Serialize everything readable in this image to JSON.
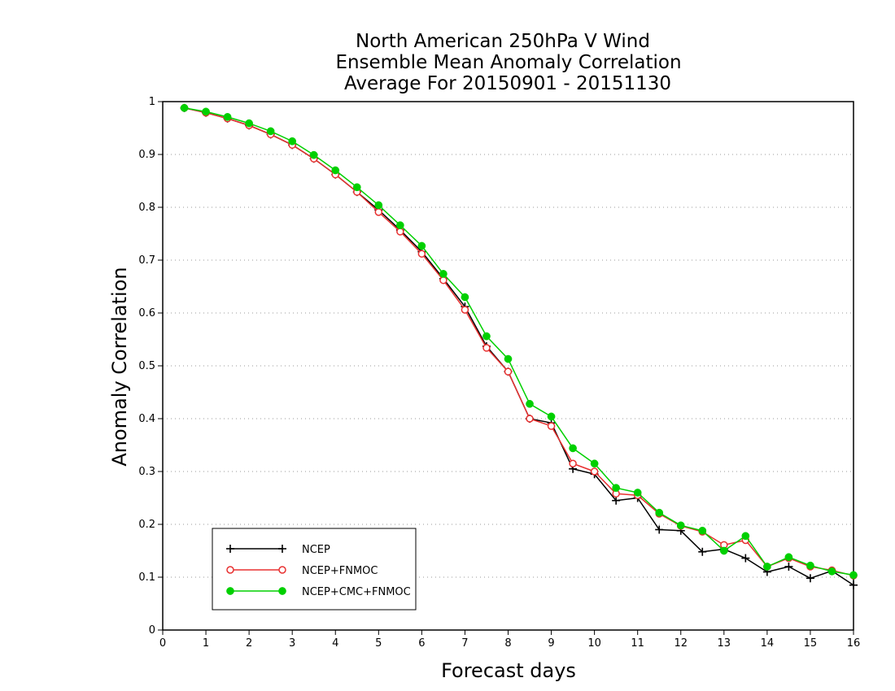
{
  "chart_data": {
    "type": "line",
    "title": [
      "North American 250hPa V Wind",
      "Ensemble Mean Anomaly Correlation",
      "Average For 20150901 - 20151130"
    ],
    "xlabel": "Forecast days",
    "ylabel": "Anomaly Correlation",
    "xlim": [
      0,
      16
    ],
    "ylim": [
      0,
      1
    ],
    "xticks": [
      "0",
      "1",
      "2",
      "3",
      "4",
      "5",
      "6",
      "7",
      "8",
      "9",
      "10",
      "11",
      "12",
      "13",
      "14",
      "15",
      "16"
    ],
    "yticks": [
      "0",
      "0.1",
      "0.2",
      "0.3",
      "0.4",
      "0.5",
      "0.6",
      "0.7",
      "0.8",
      "0.9",
      "1"
    ],
    "grid": true,
    "legend_position": "bottom-left",
    "x": [
      0.5,
      1,
      1.5,
      2,
      2.5,
      3,
      3.5,
      4,
      4.5,
      5,
      5.5,
      6,
      6.5,
      7,
      7.5,
      8,
      8.5,
      9,
      9.5,
      10,
      10.5,
      11,
      11.5,
      12,
      12.5,
      13,
      13.5,
      14,
      14.5,
      15,
      15.5,
      16
    ],
    "series": [
      {
        "name": "NCEP",
        "color": "#000000",
        "marker": "plus",
        "values": [
          0.988,
          0.979,
          0.968,
          0.955,
          0.938,
          0.918,
          0.892,
          0.862,
          0.829,
          0.795,
          0.757,
          0.716,
          0.665,
          0.612,
          0.537,
          0.489,
          0.4,
          0.392,
          0.305,
          0.295,
          0.245,
          0.25,
          0.19,
          0.188,
          0.148,
          0.153,
          0.136,
          0.11,
          0.12,
          0.098,
          0.112,
          0.085
        ]
      },
      {
        "name": "NCEP+FNMOC",
        "color": "#e83030",
        "marker": "open-circle",
        "values": [
          0.988,
          0.979,
          0.968,
          0.955,
          0.938,
          0.918,
          0.892,
          0.862,
          0.829,
          0.791,
          0.754,
          0.712,
          0.662,
          0.606,
          0.534,
          0.489,
          0.4,
          0.386,
          0.315,
          0.3,
          0.258,
          0.255,
          0.22,
          0.197,
          0.186,
          0.161,
          0.17,
          0.12,
          0.136,
          0.12,
          0.113,
          0.103
        ]
      },
      {
        "name": "NCEP+CMC+FNMOC",
        "color": "#00d000",
        "marker": "filled-circle",
        "values": [
          0.988,
          0.981,
          0.971,
          0.959,
          0.944,
          0.925,
          0.899,
          0.87,
          0.838,
          0.804,
          0.766,
          0.727,
          0.674,
          0.63,
          0.556,
          0.513,
          0.428,
          0.404,
          0.344,
          0.315,
          0.269,
          0.26,
          0.222,
          0.198,
          0.188,
          0.15,
          0.178,
          0.12,
          0.138,
          0.122,
          0.111,
          0.104
        ]
      }
    ]
  }
}
